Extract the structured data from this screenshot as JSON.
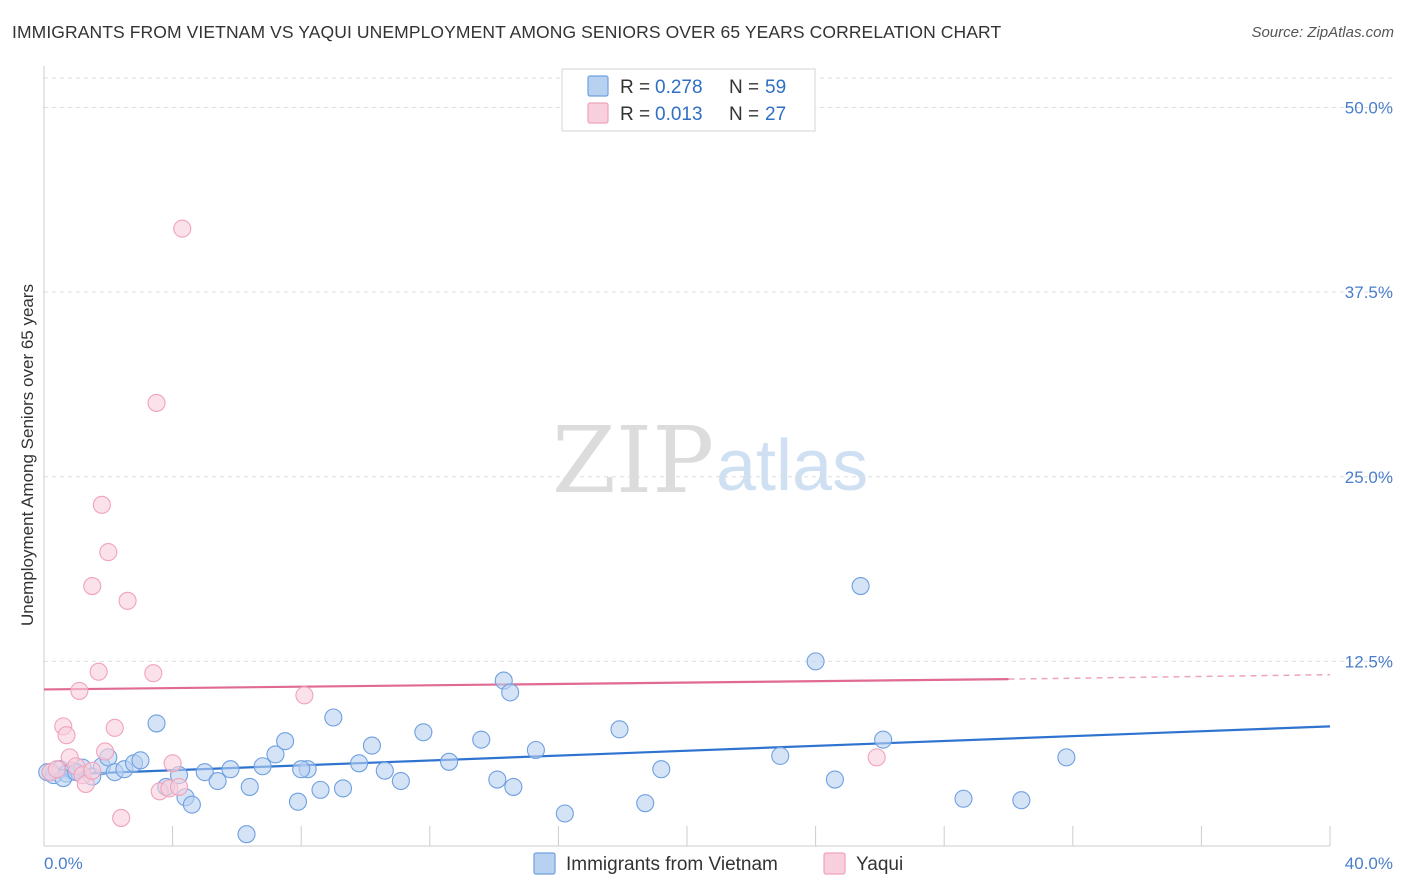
{
  "title": "IMMIGRANTS FROM VIETNAM VS YAQUI UNEMPLOYMENT AMONG SENIORS OVER 65 YEARS CORRELATION CHART",
  "source": "Source: ZipAtlas.com",
  "watermark": {
    "part1": "ZIP",
    "part2": "atlas"
  },
  "chart_data": {
    "type": "scatter",
    "title": "IMMIGRANTS FROM VIETNAM VS YAQUI UNEMPLOYMENT AMONG SENIORS OVER 65 YEARS CORRELATION CHART",
    "xlabel": "",
    "ylabel": "Unemployment Among Seniors over 65 years",
    "xlim": [
      0,
      40
    ],
    "ylim": [
      0,
      52
    ],
    "x_tick_labels": [
      "0.0%",
      "40.0%"
    ],
    "y_ticks": [
      12.5,
      25.0,
      37.5,
      50.0
    ],
    "y_tick_labels": [
      "12.5%",
      "25.0%",
      "37.5%",
      "50.0%"
    ],
    "grid": true,
    "legend_position": "top-center",
    "series": [
      {
        "name": "Immigrants from Vietnam",
        "color": "#6fa0e0",
        "fill": "#b9d1f1",
        "line_color": "#2f73d0",
        "R": "0.278",
        "N": "59",
        "trend": {
          "x0": 0,
          "y0": 4.8,
          "x1": 40,
          "y1": 8.1
        },
        "points": [
          [
            0.1,
            5.0
          ],
          [
            0.3,
            4.8
          ],
          [
            0.5,
            5.2
          ],
          [
            0.7,
            4.9
          ],
          [
            0.9,
            5.1
          ],
          [
            1.2,
            5.3
          ],
          [
            1.5,
            4.7
          ],
          [
            1.8,
            5.4
          ],
          [
            2.0,
            6.0
          ],
          [
            2.2,
            5.0
          ],
          [
            2.5,
            5.2
          ],
          [
            2.8,
            5.6
          ],
          [
            3.0,
            5.8
          ],
          [
            3.5,
            8.3
          ],
          [
            3.8,
            4.0
          ],
          [
            4.2,
            4.8
          ],
          [
            4.4,
            3.3
          ],
          [
            4.6,
            2.8
          ],
          [
            5.0,
            5.0
          ],
          [
            5.4,
            4.4
          ],
          [
            5.8,
            5.2
          ],
          [
            6.4,
            4.0
          ],
          [
            6.8,
            5.4
          ],
          [
            7.2,
            6.2
          ],
          [
            7.5,
            7.1
          ],
          [
            7.9,
            3.0
          ],
          [
            8.2,
            5.2
          ],
          [
            8.6,
            3.8
          ],
          [
            9.0,
            8.7
          ],
          [
            9.3,
            3.9
          ],
          [
            9.8,
            5.6
          ],
          [
            10.2,
            6.8
          ],
          [
            10.6,
            5.1
          ],
          [
            11.1,
            4.4
          ],
          [
            11.8,
            7.7
          ],
          [
            12.6,
            5.7
          ],
          [
            13.6,
            7.2
          ],
          [
            14.1,
            4.5
          ],
          [
            14.3,
            11.2
          ],
          [
            14.5,
            10.4
          ],
          [
            14.6,
            4.0
          ],
          [
            15.3,
            6.5
          ],
          [
            16.2,
            2.2
          ],
          [
            17.9,
            7.9
          ],
          [
            18.7,
            2.9
          ],
          [
            19.2,
            5.2
          ],
          [
            22.9,
            6.1
          ],
          [
            24.0,
            12.5
          ],
          [
            24.6,
            4.5
          ],
          [
            25.4,
            17.6
          ],
          [
            26.1,
            7.2
          ],
          [
            28.6,
            3.2
          ],
          [
            30.4,
            3.1
          ],
          [
            31.8,
            6.0
          ],
          [
            0.2,
            5.0
          ],
          [
            0.6,
            4.6
          ],
          [
            1.0,
            5.0
          ],
          [
            6.3,
            0.8
          ],
          [
            8.0,
            5.2
          ]
        ]
      },
      {
        "name": "Yaqui",
        "color": "#f0a3bb",
        "fill": "#f8cfdc",
        "line_color": "#e06a93",
        "R": "0.013",
        "N": "27",
        "trend": {
          "x0": 0,
          "y0": 10.6,
          "x1": 30,
          "y1": 11.3,
          "x_dash_end": 40,
          "y_dash_end": 11.6
        },
        "points": [
          [
            0.2,
            5.0
          ],
          [
            0.4,
            5.2
          ],
          [
            0.6,
            8.1
          ],
          [
            0.7,
            7.5
          ],
          [
            0.8,
            6.0
          ],
          [
            1.0,
            5.4
          ],
          [
            1.1,
            10.5
          ],
          [
            1.2,
            4.8
          ],
          [
            1.3,
            4.2
          ],
          [
            1.5,
            5.1
          ],
          [
            1.5,
            17.6
          ],
          [
            1.7,
            11.8
          ],
          [
            1.8,
            23.1
          ],
          [
            1.9,
            6.4
          ],
          [
            2.0,
            19.9
          ],
          [
            2.2,
            8.0
          ],
          [
            2.4,
            1.9
          ],
          [
            2.6,
            16.6
          ],
          [
            3.4,
            11.7
          ],
          [
            3.5,
            30.0
          ],
          [
            3.6,
            3.7
          ],
          [
            3.9,
            3.9
          ],
          [
            4.0,
            5.6
          ],
          [
            4.3,
            41.8
          ],
          [
            8.1,
            10.2
          ],
          [
            25.9,
            6.0
          ],
          [
            4.2,
            4.0
          ]
        ]
      }
    ]
  },
  "legend": {
    "rows": [
      {
        "r_label": "R =",
        "r_value": "0.278",
        "n_label": "N =",
        "n_value": "59"
      },
      {
        "r_label": "R =",
        "r_value": "0.013",
        "n_label": "N =",
        "n_value": "27"
      }
    ]
  },
  "bottom_legend": {
    "items": [
      "Immigrants from Vietnam",
      "Yaqui"
    ]
  }
}
